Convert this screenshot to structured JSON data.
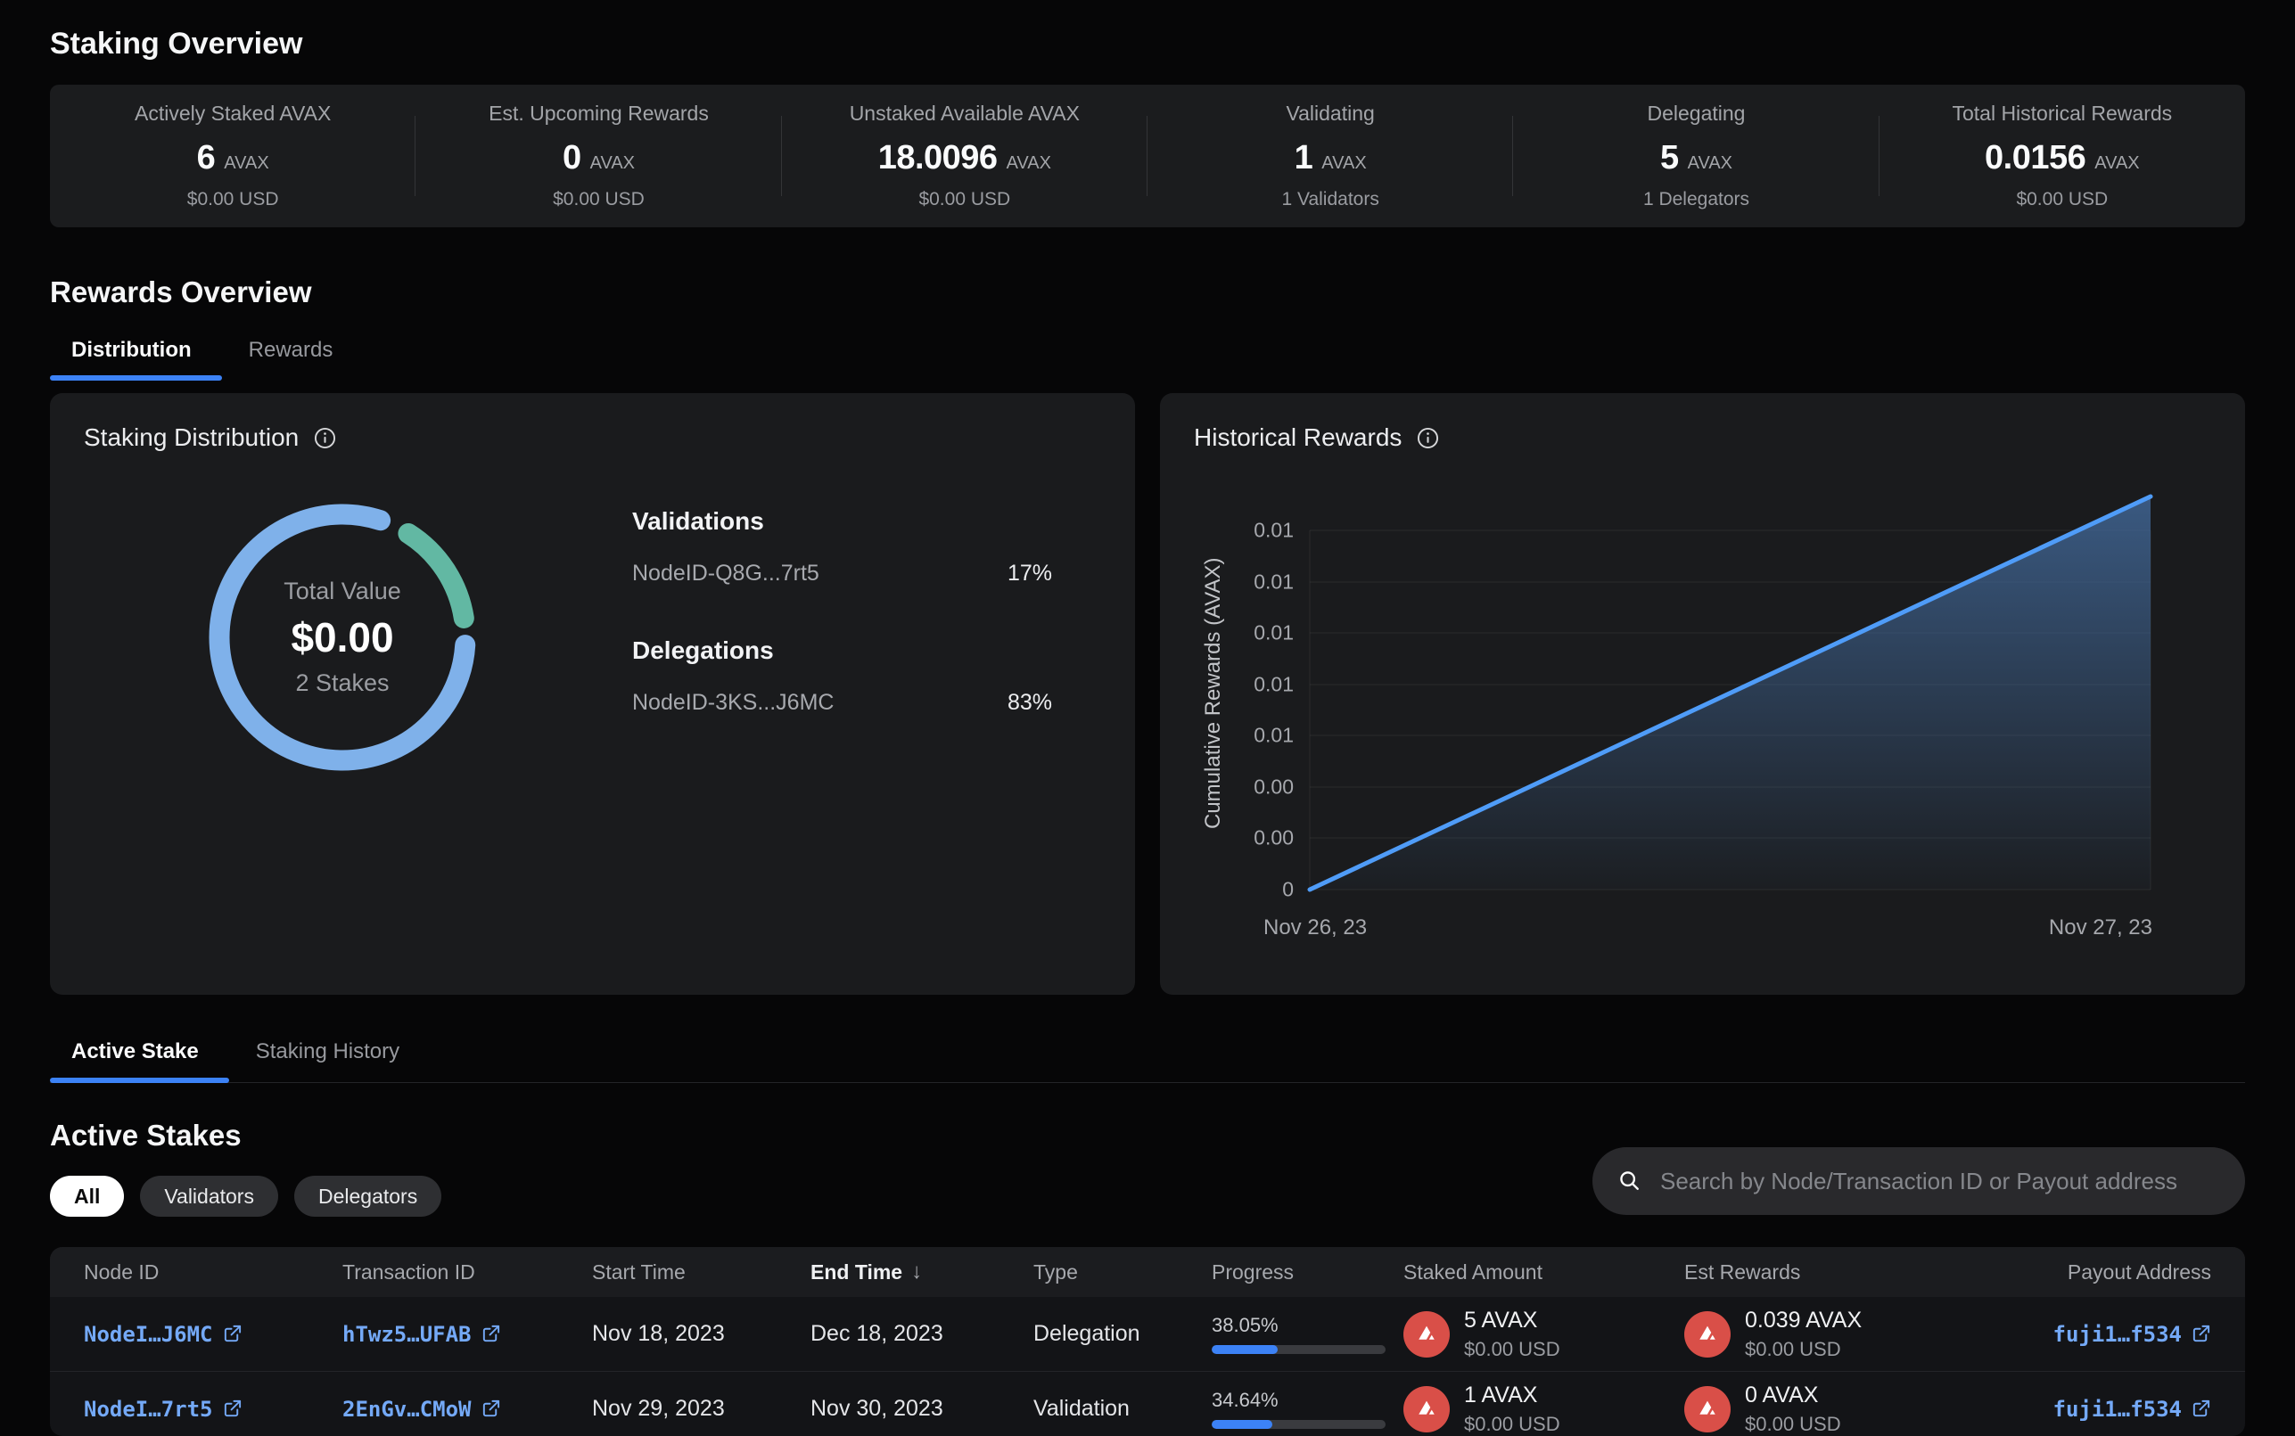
{
  "page_title": "Staking Overview",
  "stats": [
    {
      "label": "Actively Staked AVAX",
      "value": "6",
      "unit": "AVAX",
      "sub": "$0.00 USD"
    },
    {
      "label": "Est. Upcoming Rewards",
      "value": "0",
      "unit": "AVAX",
      "sub": "$0.00 USD"
    },
    {
      "label": "Unstaked Available AVAX",
      "value": "18.0096",
      "unit": "AVAX",
      "sub": "$0.00 USD"
    },
    {
      "label": "Validating",
      "value": "1",
      "unit": "AVAX",
      "sub": "1 Validators"
    },
    {
      "label": "Delegating",
      "value": "5",
      "unit": "AVAX",
      "sub": "1 Delegators"
    },
    {
      "label": "Total Historical Rewards",
      "value": "0.0156",
      "unit": "AVAX",
      "sub": "$0.00 USD"
    }
  ],
  "rewards_overview": {
    "heading": "Rewards Overview",
    "tabs": [
      {
        "label": "Distribution"
      },
      {
        "label": "Rewards"
      }
    ]
  },
  "distribution": {
    "title": "Staking Distribution",
    "center": {
      "label": "Total Value",
      "value": "$0.00",
      "sub": "2 Stakes"
    },
    "groups": [
      {
        "heading": "Validations",
        "node": "NodeID-Q8G...7rt5",
        "pct": "17%"
      },
      {
        "heading": "Delegations",
        "node": "NodeID-3KS...J6MC",
        "pct": "83%"
      }
    ]
  },
  "historical": {
    "title": "Historical Rewards",
    "ylabel": "Cumulative Rewards (AVAX)",
    "yticks_top_down": [
      "0.01",
      "0.01",
      "0.01",
      "0.01",
      "0.01",
      "0.00",
      "0.00",
      "0"
    ],
    "x_start": "Nov 26, 23",
    "x_end": "Nov 27, 23"
  },
  "stake_tabs": [
    {
      "label": "Active Stake"
    },
    {
      "label": "Staking History"
    }
  ],
  "active_stakes": {
    "heading": "Active Stakes",
    "filters": [
      {
        "label": "All"
      },
      {
        "label": "Validators"
      },
      {
        "label": "Delegators"
      }
    ],
    "active_filter": "All",
    "search_placeholder": "Search by Node/Transaction ID or Payout address"
  },
  "table": {
    "columns": [
      "Node ID",
      "Transaction ID",
      "Start Time",
      "End Time",
      "Type",
      "Progress",
      "Staked Amount",
      "Est Rewards",
      "Payout Address"
    ],
    "sort_column": "End Time",
    "sort_direction": "desc",
    "rows": [
      {
        "node_id": "NodeI…J6MC",
        "tx_id": "hTwz5…UFAB",
        "start": "Nov 18, 2023",
        "end": "Dec 18, 2023",
        "type": "Delegation",
        "progress": {
          "label": "38.05%",
          "value": 38.05
        },
        "staked": {
          "amount": "5 AVAX",
          "usd": "$0.00 USD"
        },
        "est_rewards": {
          "amount": "0.039 AVAX",
          "usd": "$0.00 USD"
        },
        "payout": "fuji1…f534"
      },
      {
        "node_id": "NodeI…7rt5",
        "tx_id": "2EnGv…CMoW",
        "start": "Nov 29, 2023",
        "end": "Nov 30, 2023",
        "type": "Validation",
        "progress": {
          "label": "34.64%",
          "value": 34.64
        },
        "staked": {
          "amount": "1 AVAX",
          "usd": "$0.00 USD"
        },
        "est_rewards": {
          "amount": "0 AVAX",
          "usd": "$0.00 USD"
        },
        "payout": "fuji1…f534"
      }
    ]
  },
  "colors": {
    "accent_blue": "#3C82F6",
    "donut_blue": "#7FB1EA",
    "donut_green": "#62B8A3",
    "line_blue": "#4F9CF8",
    "avax_red": "#D94F48",
    "link_blue": "#74A9F7"
  },
  "chart_data": [
    {
      "type": "pie",
      "subtype": "donut",
      "title": "Staking Distribution",
      "center": {
        "label": "Total Value",
        "value": "$0.00",
        "sub": "2 Stakes"
      },
      "labels": [
        "NodeID-Q8G...7rt5 (Validations)",
        "NodeID-3KS...J6MC (Delegations)"
      ],
      "values": [
        17,
        83
      ],
      "unit": "%",
      "colors": [
        "#62B8A3",
        "#7FB1EA"
      ]
    },
    {
      "type": "line",
      "title": "Historical Rewards",
      "xlabel": "",
      "ylabel": "Cumulative Rewards (AVAX)",
      "x": [
        "Nov 26, 23",
        "Nov 27, 23"
      ],
      "series": [
        {
          "name": "Cumulative Rewards",
          "values": [
            0,
            0.0156
          ]
        }
      ],
      "ylim": [
        0,
        0.018
      ],
      "yticks": [
        "0",
        "0.00",
        "0.00",
        "0.01",
        "0.01",
        "0.01",
        "0.01",
        "0.01"
      ],
      "grid": true,
      "legend": false,
      "area_fill": true
    }
  ]
}
